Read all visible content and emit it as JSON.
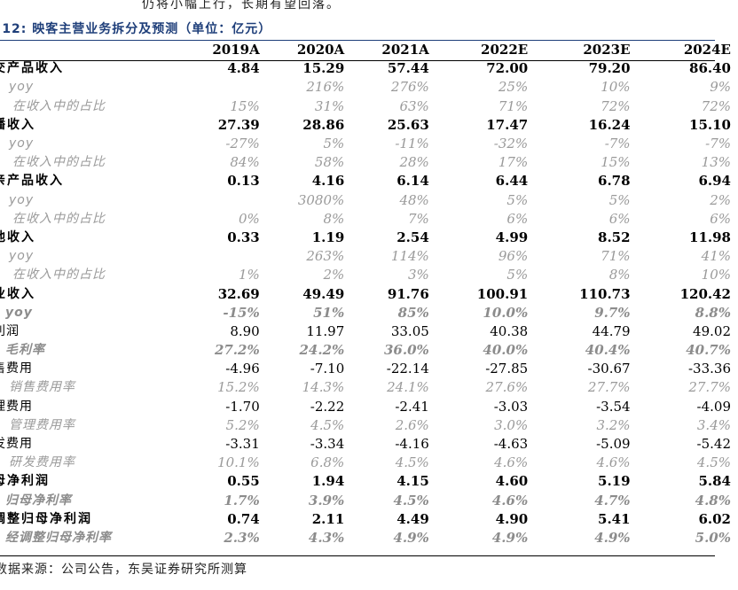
{
  "intro_text": "仍将小幅上行，长期有望回落。",
  "caption": ".12: 映客主营业务拆分及预测（单位：亿元）",
  "source": "数据来源：公司公告，东吴证券研究所测算",
  "table": {
    "columns": [
      "2019A",
      "2020A",
      "2021A",
      "2022E",
      "2023E",
      "2024E"
    ],
    "rows": [
      {
        "label": "交产品收入",
        "style": "main",
        "values": [
          "4.84",
          "15.29",
          "57.44",
          "72.00",
          "79.20",
          "86.40"
        ]
      },
      {
        "label": "yoy",
        "style": "sub",
        "values": [
          "",
          "216%",
          "276%",
          "25%",
          "10%",
          "9%"
        ]
      },
      {
        "label": "在收入中的占比",
        "style": "sub lvl2",
        "values": [
          "15%",
          "31%",
          "63%",
          "71%",
          "72%",
          "72%"
        ]
      },
      {
        "label": "播收入",
        "style": "main",
        "values": [
          "27.39",
          "28.86",
          "25.63",
          "17.47",
          "16.24",
          "15.10"
        ]
      },
      {
        "label": "yoy",
        "style": "sub",
        "values": [
          "-27%",
          "5%",
          "-11%",
          "-32%",
          "-7%",
          "-7%"
        ]
      },
      {
        "label": "在收入中的占比",
        "style": "sub lvl2",
        "values": [
          "84%",
          "58%",
          "28%",
          "17%",
          "15%",
          "13%"
        ]
      },
      {
        "label": "亲产品收入",
        "style": "main",
        "values": [
          "0.13",
          "4.16",
          "6.14",
          "6.44",
          "6.78",
          "6.94"
        ]
      },
      {
        "label": "yoy",
        "style": "sub",
        "values": [
          "",
          "3080%",
          "48%",
          "5%",
          "5%",
          "2%"
        ]
      },
      {
        "label": "在收入中的占比",
        "style": "sub lvl2",
        "values": [
          "0%",
          "8%",
          "7%",
          "6%",
          "6%",
          "6%"
        ]
      },
      {
        "label": "他收入",
        "style": "main",
        "values": [
          "0.33",
          "1.19",
          "2.54",
          "4.99",
          "8.52",
          "11.98"
        ]
      },
      {
        "label": "yoy",
        "style": "sub",
        "values": [
          "",
          "263%",
          "114%",
          "96%",
          "71%",
          "41%"
        ]
      },
      {
        "label": "在收入中的占比",
        "style": "sub lvl2",
        "values": [
          "1%",
          "2%",
          "3%",
          "5%",
          "8%",
          "10%"
        ]
      },
      {
        "label": "业收入",
        "style": "main",
        "values": [
          "32.69",
          "49.49",
          "91.76",
          "100.91",
          "110.73",
          "120.42"
        ]
      },
      {
        "label": "yoy",
        "style": "boldsub",
        "values": [
          "-15%",
          "51%",
          "85%",
          "10.0%",
          "9.7%",
          "8.8%"
        ]
      },
      {
        "label": "利润",
        "style": "plain",
        "values": [
          "8.90",
          "11.97",
          "33.05",
          "40.38",
          "44.79",
          "49.02"
        ]
      },
      {
        "label": "毛利率",
        "style": "boldsub",
        "values": [
          "27.2%",
          "24.2%",
          "36.0%",
          "40.0%",
          "40.4%",
          "40.7%"
        ]
      },
      {
        "label": "售费用",
        "style": "plain",
        "values": [
          "-4.96",
          "-7.10",
          "-22.14",
          "-27.85",
          "-30.67",
          "-33.36"
        ]
      },
      {
        "label": "销售费用率",
        "style": "sub",
        "values": [
          "15.2%",
          "14.3%",
          "24.1%",
          "27.6%",
          "27.7%",
          "27.7%"
        ]
      },
      {
        "label": "理费用",
        "style": "plain",
        "values": [
          "-1.70",
          "-2.22",
          "-2.41",
          "-3.03",
          "-3.54",
          "-4.09"
        ]
      },
      {
        "label": "管理费用率",
        "style": "sub",
        "values": [
          "5.2%",
          "4.5%",
          "2.6%",
          "3.0%",
          "3.2%",
          "3.4%"
        ]
      },
      {
        "label": "发费用",
        "style": "plain",
        "values": [
          "-3.31",
          "-3.34",
          "-4.16",
          "-4.63",
          "-5.09",
          "-5.42"
        ]
      },
      {
        "label": "研发费用率",
        "style": "sub",
        "values": [
          "10.1%",
          "6.8%",
          "4.5%",
          "4.6%",
          "4.6%",
          "4.5%"
        ]
      },
      {
        "label": "母净利润",
        "style": "main",
        "values": [
          "0.55",
          "1.94",
          "4.15",
          "4.60",
          "5.19",
          "5.84"
        ]
      },
      {
        "label": "归母净利率",
        "style": "boldsub",
        "values": [
          "1.7%",
          "3.9%",
          "4.5%",
          "4.6%",
          "4.7%",
          "4.8%"
        ]
      },
      {
        "label": "调整归母净利润",
        "style": "main",
        "values": [
          "0.74",
          "2.11",
          "4.49",
          "4.90",
          "5.41",
          "6.02"
        ]
      },
      {
        "label": "经调整归母净利率",
        "style": "boldsub",
        "values": [
          "2.3%",
          "4.3%",
          "4.9%",
          "4.9%",
          "4.9%",
          "5.0%"
        ]
      }
    ]
  }
}
